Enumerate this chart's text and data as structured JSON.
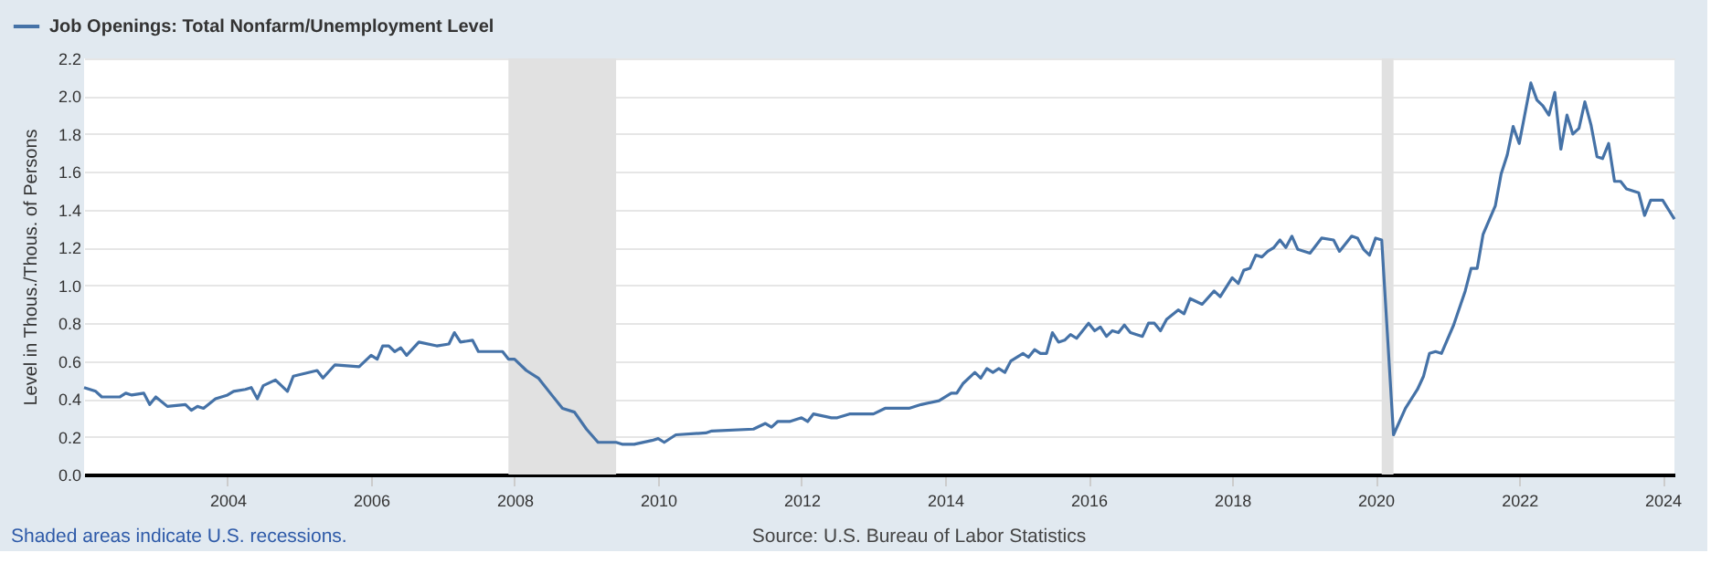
{
  "chart_data": {
    "type": "line",
    "ylabel": "Level in Thous./Thous. of Persons",
    "x": [
      "2002-01",
      "2002-03",
      "2002-04",
      "2002-07",
      "2002-08",
      "2002-09",
      "2002-11",
      "2002-12",
      "2003-01",
      "2003-03",
      "2003-06",
      "2003-07",
      "2003-08",
      "2003-09",
      "2003-11",
      "2004-01",
      "2004-02",
      "2004-04",
      "2004-05",
      "2004-06",
      "2004-07",
      "2004-09",
      "2004-11",
      "2004-12",
      "2005-04",
      "2005-05",
      "2005-07",
      "2005-11",
      "2006-01",
      "2006-02",
      "2006-03",
      "2006-04",
      "2006-05",
      "2006-06",
      "2006-07",
      "2006-09",
      "2006-12",
      "2007-02",
      "2007-03",
      "2007-04",
      "2007-06",
      "2007-07",
      "2007-11",
      "2007-12",
      "2008-01",
      "2008-03",
      "2008-05",
      "2008-07",
      "2008-09",
      "2008-11",
      "2009-01",
      "2009-03",
      "2009-04",
      "2009-06",
      "2009-07",
      "2009-09",
      "2009-12",
      "2010-01",
      "2010-02",
      "2010-04",
      "2010-09",
      "2010-10",
      "2011-05",
      "2011-07",
      "2011-08",
      "2011-09",
      "2011-11",
      "2012-01",
      "2012-02",
      "2012-03",
      "2012-06",
      "2012-07",
      "2012-09",
      "2013-01",
      "2013-03",
      "2013-05",
      "2013-07",
      "2013-09",
      "2013-12",
      "2014-02",
      "2014-03",
      "2014-04",
      "2014-06",
      "2014-07",
      "2014-08",
      "2014-09",
      "2014-10",
      "2014-11",
      "2014-12",
      "2015-02",
      "2015-03",
      "2015-04",
      "2015-05",
      "2015-06",
      "2015-07",
      "2015-08",
      "2015-09",
      "2015-10",
      "2015-11",
      "2016-01",
      "2016-02",
      "2016-03",
      "2016-04",
      "2016-05",
      "2016-06",
      "2016-07",
      "2016-08",
      "2016-10",
      "2016-11",
      "2016-12",
      "2017-01",
      "2017-02",
      "2017-04",
      "2017-05",
      "2017-06",
      "2017-08",
      "2017-10",
      "2017-11",
      "2018-01",
      "2018-02",
      "2018-03",
      "2018-04",
      "2018-05",
      "2018-06",
      "2018-07",
      "2018-08",
      "2018-09",
      "2018-10",
      "2018-11",
      "2018-12",
      "2019-02",
      "2019-04",
      "2019-06",
      "2019-07",
      "2019-09",
      "2019-10",
      "2019-11",
      "2019-12",
      "2020-01",
      "2020-02",
      "2020-04",
      "2020-06",
      "2020-08",
      "2020-09",
      "2020-10",
      "2020-11",
      "2020-12",
      "2021-02",
      "2021-04",
      "2021-05",
      "2021-06",
      "2021-07",
      "2021-09",
      "2021-10",
      "2021-11",
      "2021-12",
      "2022-01",
      "2022-03",
      "2022-04",
      "2022-05",
      "2022-06",
      "2022-07",
      "2022-08",
      "2022-09",
      "2022-10",
      "2022-11",
      "2022-12",
      "2023-01",
      "2023-02",
      "2023-03",
      "2023-04",
      "2023-05",
      "2023-06",
      "2023-07",
      "2023-09",
      "2023-10",
      "2023-11",
      "2024-01",
      "2024-03"
    ],
    "series": [
      {
        "name": "Job Openings: Total Nonfarm/Unemployment Level",
        "color": "#4572a7",
        "values": [
          0.46,
          0.44,
          0.41,
          0.41,
          0.43,
          0.42,
          0.43,
          0.37,
          0.41,
          0.36,
          0.37,
          0.34,
          0.36,
          0.35,
          0.4,
          0.42,
          0.44,
          0.45,
          0.46,
          0.4,
          0.47,
          0.5,
          0.44,
          0.52,
          0.55,
          0.51,
          0.58,
          0.57,
          0.63,
          0.61,
          0.68,
          0.68,
          0.65,
          0.67,
          0.63,
          0.7,
          0.68,
          0.69,
          0.75,
          0.7,
          0.71,
          0.65,
          0.65,
          0.61,
          0.61,
          0.55,
          0.51,
          0.43,
          0.35,
          0.33,
          0.24,
          0.17,
          0.17,
          0.17,
          0.16,
          0.16,
          0.18,
          0.19,
          0.17,
          0.21,
          0.22,
          0.23,
          0.24,
          0.27,
          0.25,
          0.28,
          0.28,
          0.3,
          0.28,
          0.32,
          0.3,
          0.3,
          0.32,
          0.32,
          0.35,
          0.35,
          0.35,
          0.37,
          0.39,
          0.43,
          0.43,
          0.48,
          0.54,
          0.51,
          0.56,
          0.54,
          0.56,
          0.54,
          0.6,
          0.64,
          0.62,
          0.66,
          0.64,
          0.64,
          0.75,
          0.7,
          0.71,
          0.74,
          0.72,
          0.8,
          0.76,
          0.78,
          0.73,
          0.76,
          0.75,
          0.79,
          0.75,
          0.73,
          0.8,
          0.8,
          0.76,
          0.82,
          0.87,
          0.85,
          0.93,
          0.9,
          0.97,
          0.94,
          1.04,
          1.01,
          1.08,
          1.09,
          1.16,
          1.15,
          1.18,
          1.2,
          1.24,
          1.2,
          1.26,
          1.19,
          1.17,
          1.25,
          1.24,
          1.18,
          1.26,
          1.25,
          1.19,
          1.16,
          1.25,
          1.24,
          0.21,
          0.35,
          0.45,
          0.52,
          0.64,
          0.65,
          0.64,
          0.79,
          0.97,
          1.09,
          1.09,
          1.27,
          1.42,
          1.59,
          1.69,
          1.84,
          1.75,
          2.07,
          1.98,
          1.95,
          1.9,
          2.02,
          1.72,
          1.9,
          1.8,
          1.83,
          1.97,
          1.85,
          1.68,
          1.67,
          1.75,
          1.55,
          1.55,
          1.51,
          1.49,
          1.37,
          1.45,
          1.45,
          1.35
        ]
      }
    ],
    "xlim": [
      "2002-01",
      "2024-03"
    ],
    "xticks": [
      {
        "value": "2004",
        "label": "2004"
      },
      {
        "value": "2006",
        "label": "2006"
      },
      {
        "value": "2008",
        "label": "2008"
      },
      {
        "value": "2010",
        "label": "2010"
      },
      {
        "value": "2012",
        "label": "2012"
      },
      {
        "value": "2014",
        "label": "2014"
      },
      {
        "value": "2016",
        "label": "2016"
      },
      {
        "value": "2018",
        "label": "2018"
      },
      {
        "value": "2020",
        "label": "2020"
      },
      {
        "value": "2022",
        "label": "2022"
      },
      {
        "value": "2024",
        "label": "2024"
      }
    ],
    "ylim": [
      0,
      2.2
    ],
    "yticks": [
      {
        "value": 0,
        "label": "0.0"
      },
      {
        "value": 0.2,
        "label": "0.2"
      },
      {
        "value": 0.4,
        "label": "0.4"
      },
      {
        "value": 0.6,
        "label": "0.6"
      },
      {
        "value": 0.8,
        "label": "0.8"
      },
      {
        "value": 1.0,
        "label": "1.0"
      },
      {
        "value": 1.2,
        "label": "1.2"
      },
      {
        "value": 1.4,
        "label": "1.4"
      },
      {
        "value": 1.6,
        "label": "1.6"
      },
      {
        "value": 1.8,
        "label": "1.8"
      },
      {
        "value": 2.0,
        "label": "2.0"
      },
      {
        "value": 2.2,
        "label": "2.2"
      }
    ],
    "bands": [
      {
        "axis": "x",
        "from": "2007-12",
        "to": "2009-06",
        "color": "#e1e1e1"
      },
      {
        "axis": "x",
        "from": "2020-02",
        "to": "2020-04",
        "color": "#e1e1e1"
      }
    ],
    "grid": "y",
    "legend": "top left",
    "annotations": [
      "Shaded areas indicate U.S. recessions.",
      "Source: U.S. Bureau of Labor Statistics"
    ]
  }
}
